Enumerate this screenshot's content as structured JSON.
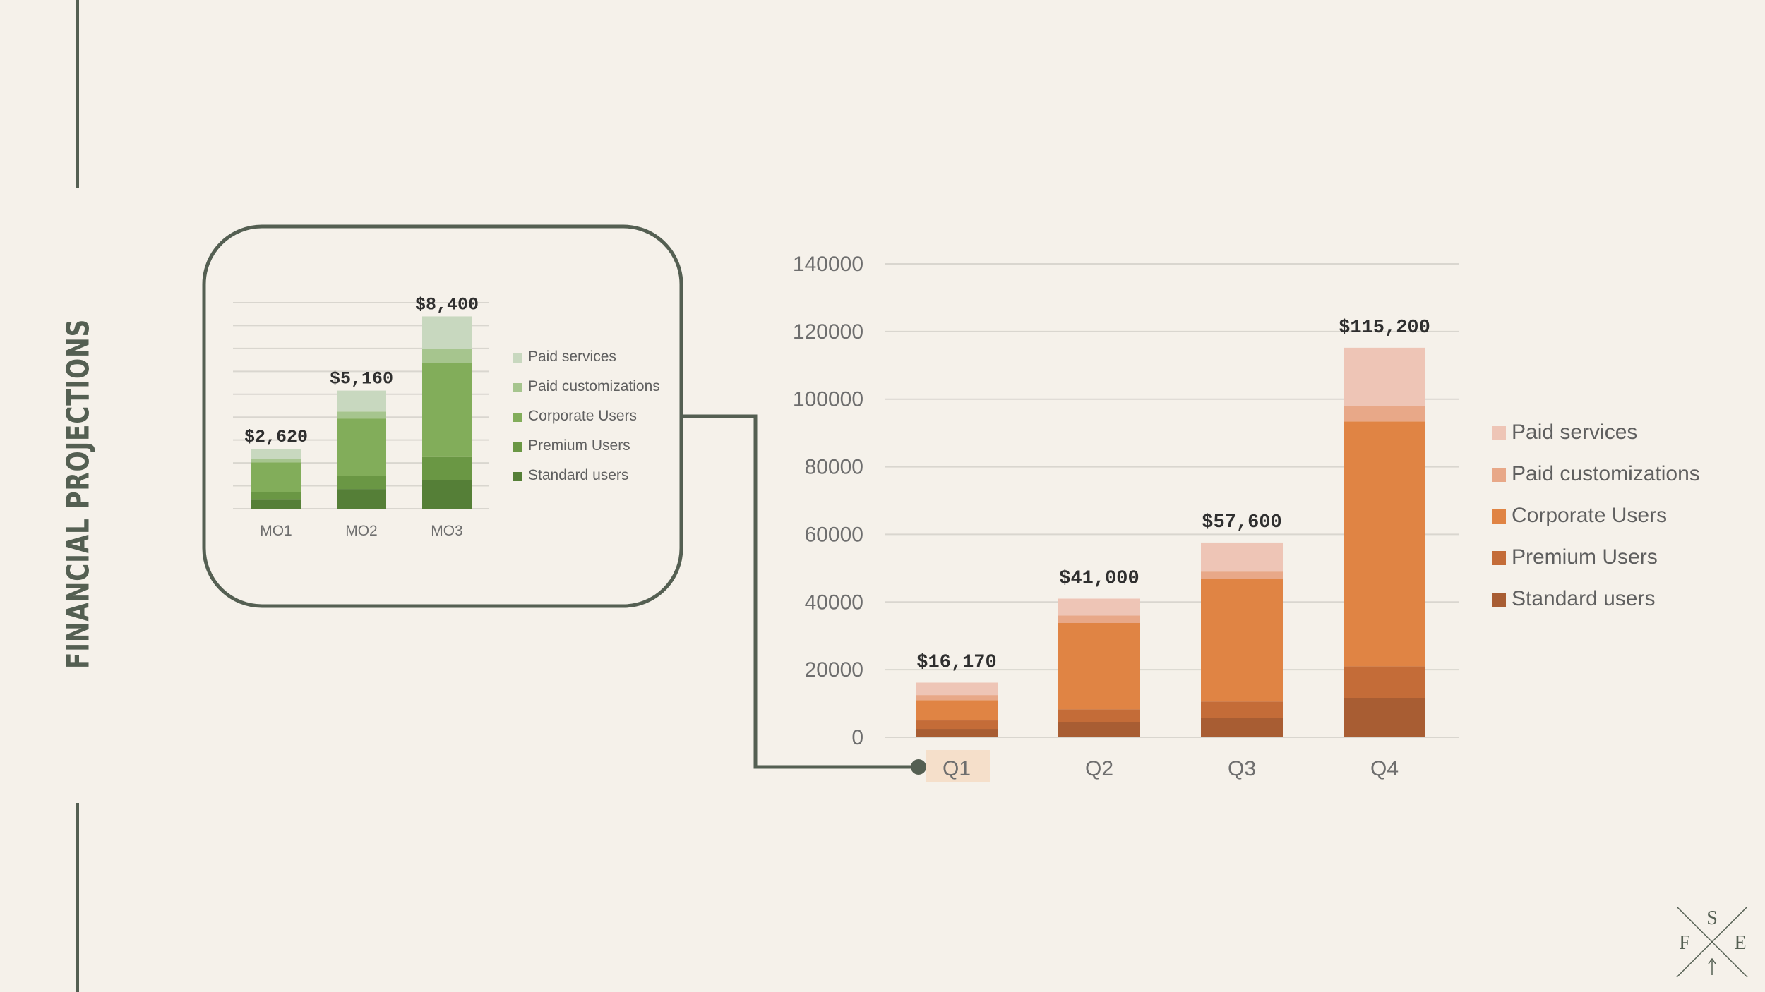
{
  "page": {
    "title": "FINANCIAL PROJECTIONS",
    "logo_letters": {
      "top": "S",
      "left": "F",
      "right": "E"
    }
  },
  "colors": {
    "background": "#f5f1ea",
    "accent_dark": "#545f52",
    "green_series": [
      "#c8d8bf",
      "#a6c58e",
      "#82ad5a",
      "#6a9744",
      "#557f37"
    ],
    "orange_series": [
      "#eec5b6",
      "#e8a888",
      "#e08444",
      "#c46c38",
      "#a85d33"
    ],
    "highlight": "#f5dfca"
  },
  "chart_data": [
    {
      "type": "bar",
      "stacked": true,
      "categories": [
        "MO1",
        "MO2",
        "MO3"
      ],
      "totals": [
        "$2,620",
        "$5,160",
        "$8,400"
      ],
      "series": [
        {
          "name": "Standard users",
          "values": [
            420,
            860,
            1260
          ]
        },
        {
          "name": "Premium Users",
          "values": [
            300,
            580,
            1000
          ]
        },
        {
          "name": "Corporate Users",
          "values": [
            1300,
            2500,
            4100
          ]
        },
        {
          "name": "Paid customizations",
          "values": [
            150,
            300,
            630
          ]
        },
        {
          "name": "Paid services",
          "values": [
            450,
            920,
            1410
          ]
        }
      ],
      "ylim": [
        0,
        9000
      ],
      "grid": true,
      "legend": "right"
    },
    {
      "type": "bar",
      "stacked": true,
      "categories": [
        "Q1",
        "Q2",
        "Q3",
        "Q4"
      ],
      "totals": [
        "$16,170",
        "$41,000",
        "$57,600",
        "$115,200"
      ],
      "series": [
        {
          "name": "Standard users",
          "values": [
            2500,
            4500,
            5800,
            11500
          ]
        },
        {
          "name": "Premium Users",
          "values": [
            2500,
            3800,
            4800,
            9500
          ]
        },
        {
          "name": "Corporate Users",
          "values": [
            6000,
            25500,
            36200,
            72400
          ]
        },
        {
          "name": "Paid customizations",
          "values": [
            1500,
            2200,
            2200,
            4600
          ]
        },
        {
          "name": "Paid services",
          "values": [
            3670,
            5000,
            8600,
            17200
          ]
        }
      ],
      "yticks": [
        "0",
        "20000",
        "40000",
        "60000",
        "80000",
        "100000",
        "120000",
        "140000"
      ],
      "ylim": [
        0,
        140000
      ],
      "grid": true,
      "legend": "right",
      "highlighted_category": "Q1"
    }
  ]
}
